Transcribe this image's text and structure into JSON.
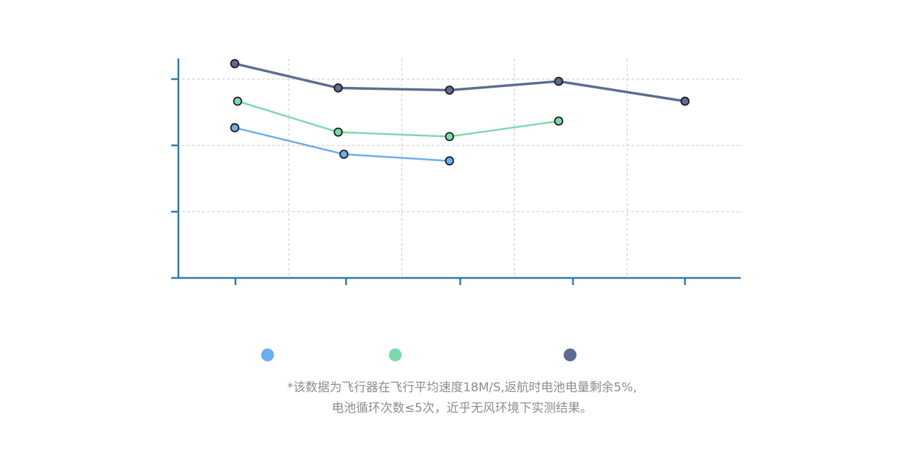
{
  "chart_data": {
    "type": "line",
    "x": [
      1,
      2,
      3,
      4,
      5
    ],
    "series": [
      {
        "values": [
          68,
          56,
          53,
          null,
          null
        ],
        "color": "#6aaef0"
      },
      {
        "values": [
          80,
          66,
          64,
          71,
          null
        ],
        "color": "#7dd9ab"
      },
      {
        "values": [
          97,
          86,
          85,
          89,
          80
        ],
        "color": "#5d6c90"
      }
    ],
    "ylim": [
      0,
      120
    ],
    "y_grid_at": [
      30,
      60,
      90
    ],
    "grid": true,
    "legend_position": "bottom"
  },
  "legend": {
    "items": [
      {
        "color": "#6aaef0"
      },
      {
        "color": "#7dd9ab"
      },
      {
        "color": "#5d6c90"
      }
    ]
  },
  "colors": {
    "axis": "#2d7aa8",
    "grid": "#c8c8c8",
    "marker_stroke": "#1a1a1a",
    "footnote": "#8c8c8c"
  },
  "footnote": {
    "line1": "*该数据为飞行器在飞行平均速度18M/S,返航时电池电量剩余5%,",
    "line2": "电池循环次数≤5次，近乎无风环境下实测结果。"
  }
}
